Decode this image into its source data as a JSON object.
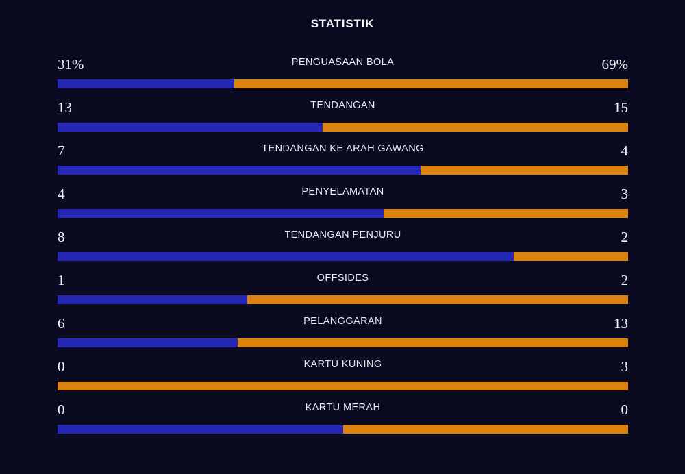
{
  "title": "STATISTIK",
  "colors": {
    "background": "#0a0a21",
    "home_bar": "#2428b4",
    "away_bar": "#dc820e",
    "text": "#f3f2f6"
  },
  "rows": [
    {
      "label": "PENGUASAAN BOLA",
      "home": "31%",
      "away": "69%",
      "home_share": 31
    },
    {
      "label": "TENDANGAN",
      "home": "13",
      "away": "15",
      "home_share": 46.4
    },
    {
      "label": "TENDANGAN KE ARAH GAWANG",
      "home": "7",
      "away": "4",
      "home_share": 63.6
    },
    {
      "label": "PENYELAMATAN",
      "home": "4",
      "away": "3",
      "home_share": 57.1
    },
    {
      "label": "TENDANGAN PENJURU",
      "home": "8",
      "away": "2",
      "home_share": 80
    },
    {
      "label": "OFFSIDES",
      "home": "1",
      "away": "2",
      "home_share": 33.3
    },
    {
      "label": "PELANGGARAN",
      "home": "6",
      "away": "13",
      "home_share": 31.6
    },
    {
      "label": "KARTU KUNING",
      "home": "0",
      "away": "3",
      "home_share": 0
    },
    {
      "label": "KARTU MERAH",
      "home": "0",
      "away": "0",
      "home_share": 50
    }
  ],
  "chart_data": {
    "type": "bar",
    "title": "STATISTIK",
    "orientation": "horizontal-stacked-pairs",
    "categories": [
      "PENGUASAAN BOLA",
      "TENDANGAN",
      "TENDANGAN KE ARAH GAWANG",
      "PENYELAMATAN",
      "TENDANGAN PENJURU",
      "OFFSIDES",
      "PELANGGARAN",
      "KARTU KUNING",
      "KARTU MERAH"
    ],
    "series": [
      {
        "name": "home",
        "color": "#2428b4",
        "values": [
          31,
          13,
          7,
          4,
          8,
          1,
          6,
          0,
          0
        ]
      },
      {
        "name": "away",
        "color": "#dc820e",
        "values": [
          69,
          15,
          4,
          3,
          2,
          2,
          13,
          3,
          0
        ]
      }
    ],
    "units": [
      "percent",
      "count",
      "count",
      "count",
      "count",
      "count",
      "count",
      "count",
      "count"
    ],
    "legend_position": "none",
    "grid": false
  }
}
